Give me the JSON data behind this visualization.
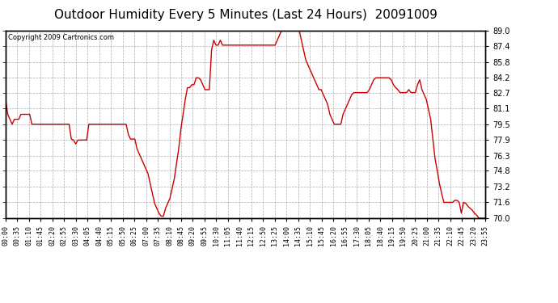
{
  "title": "Outdoor Humidity Every 5 Minutes (Last 24 Hours)  20091009",
  "copyright": "Copyright 2009 Cartronics.com",
  "line_color": "#cc0000",
  "bg_color": "#ffffff",
  "grid_color": "#999999",
  "ylim": [
    70.0,
    89.0
  ],
  "yticks": [
    70.0,
    71.6,
    73.2,
    74.8,
    76.3,
    77.9,
    79.5,
    81.1,
    82.7,
    84.2,
    85.8,
    87.4,
    89.0
  ],
  "humidity_values": [
    82.0,
    80.5,
    80.0,
    79.5,
    80.0,
    80.0,
    80.0,
    80.5,
    80.5,
    80.5,
    80.5,
    80.5,
    79.5,
    79.5,
    79.5,
    79.5,
    79.5,
    79.5,
    79.5,
    79.5,
    79.5,
    79.5,
    79.5,
    79.5,
    79.5,
    79.5,
    79.5,
    79.5,
    79.5,
    79.5,
    78.0,
    77.9,
    77.5,
    77.9,
    77.9,
    77.9,
    77.9,
    77.9,
    79.5,
    79.5,
    79.5,
    79.5,
    79.5,
    79.5,
    79.5,
    79.5,
    79.5,
    79.5,
    79.5,
    79.5,
    79.5,
    79.5,
    79.5,
    79.5,
    79.5,
    79.5,
    78.5,
    78.0,
    78.0,
    78.0,
    77.0,
    76.5,
    76.0,
    75.5,
    75.0,
    74.5,
    73.5,
    72.5,
    71.5,
    71.0,
    70.5,
    70.2,
    70.2,
    71.0,
    71.5,
    72.0,
    73.0,
    74.0,
    75.5,
    77.0,
    79.0,
    80.5,
    82.0,
    83.2,
    83.2,
    83.5,
    83.5,
    84.2,
    84.2,
    84.0,
    83.5,
    83.0,
    83.0,
    83.0,
    87.0,
    88.0,
    87.5,
    87.5,
    88.0,
    87.5,
    87.5,
    87.5,
    87.5,
    87.5,
    87.5,
    87.5,
    87.5,
    87.5,
    87.5,
    87.5,
    87.5,
    87.5,
    87.5,
    87.5,
    87.5,
    87.5,
    87.5,
    87.5,
    87.5,
    87.5,
    87.5,
    87.5,
    87.5,
    87.5,
    88.0,
    88.5,
    89.0,
    89.0,
    89.0,
    89.0,
    89.0,
    89.0,
    89.0,
    89.0,
    89.0,
    88.0,
    87.0,
    86.0,
    85.5,
    85.0,
    84.5,
    84.0,
    83.5,
    83.0,
    83.0,
    82.5,
    82.0,
    81.5,
    80.5,
    80.0,
    79.5,
    79.5,
    79.5,
    79.5,
    80.5,
    81.0,
    81.5,
    82.0,
    82.5,
    82.7,
    82.7,
    82.7,
    82.7,
    82.7,
    82.7,
    82.7,
    83.0,
    83.5,
    84.0,
    84.2,
    84.2,
    84.2,
    84.2,
    84.2,
    84.2,
    84.2,
    84.0,
    83.5,
    83.2,
    83.0,
    82.7,
    82.7,
    82.7,
    82.7,
    83.0,
    82.7,
    82.7,
    82.7,
    83.5,
    84.0,
    83.0,
    82.5,
    82.0,
    81.0,
    80.0,
    78.0,
    76.0,
    74.8,
    73.5,
    72.5,
    71.6,
    71.6,
    71.6,
    71.6,
    71.6,
    71.8,
    71.8,
    71.6,
    70.5,
    71.6,
    71.5,
    71.2,
    71.0,
    70.8,
    70.5,
    70.3,
    70.0,
    70.0,
    70.0,
    70.0
  ],
  "x_tick_labels": [
    "00:00",
    "00:35",
    "01:10",
    "01:45",
    "02:20",
    "02:55",
    "03:30",
    "04:05",
    "04:40",
    "05:15",
    "05:50",
    "06:25",
    "07:00",
    "07:35",
    "08:10",
    "08:45",
    "09:20",
    "09:55",
    "10:30",
    "11:05",
    "11:40",
    "12:15",
    "12:50",
    "13:25",
    "14:00",
    "14:35",
    "15:10",
    "15:45",
    "16:20",
    "16:55",
    "17:30",
    "18:05",
    "18:40",
    "19:15",
    "19:50",
    "20:25",
    "21:00",
    "21:35",
    "22:10",
    "22:45",
    "23:20",
    "23:55"
  ],
  "title_fontsize": 11,
  "tick_fontsize": 7,
  "xtick_fontsize": 6
}
